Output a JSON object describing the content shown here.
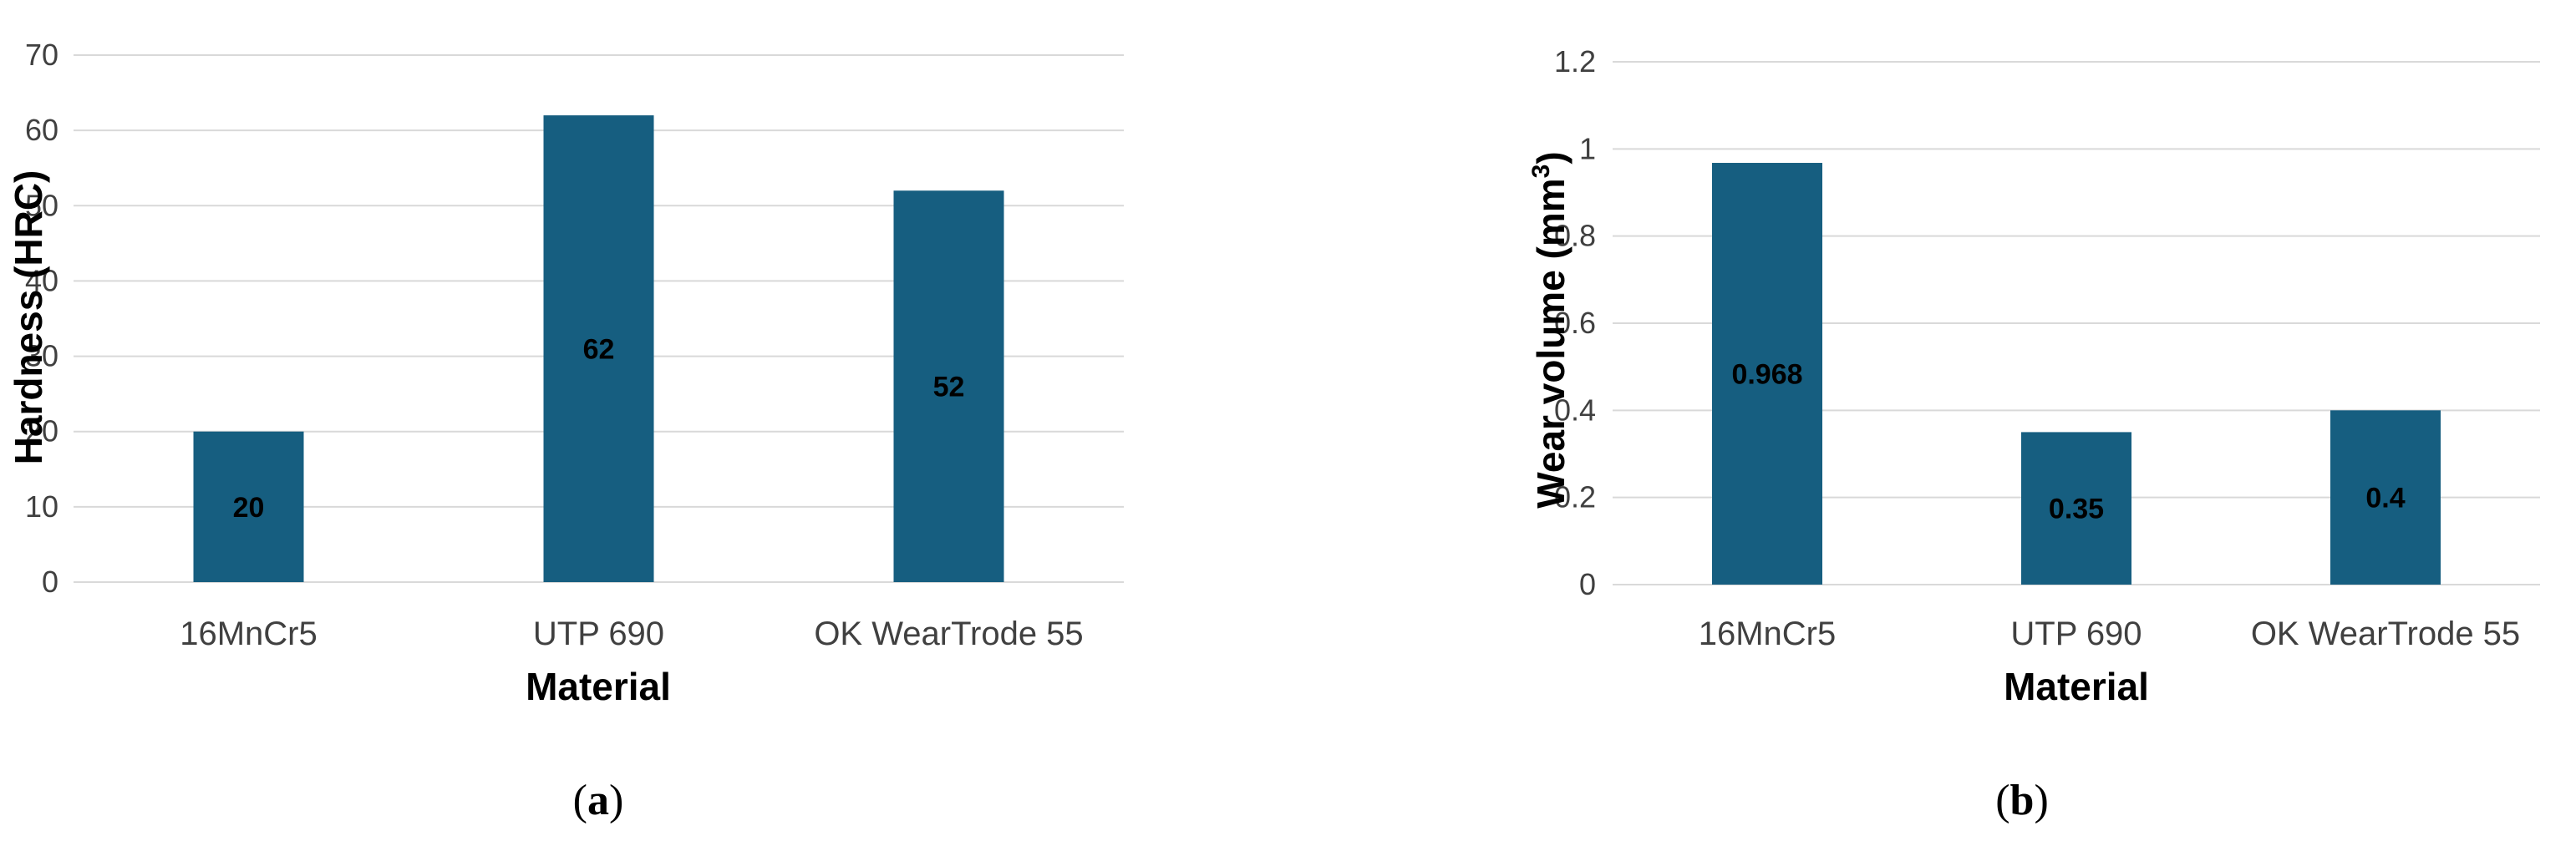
{
  "chart_data": [
    {
      "type": "bar",
      "panel_label": "a",
      "categories": [
        "16MnCr5",
        "UTP 690",
        "OK WearTrode 55"
      ],
      "values": [
        20,
        62,
        52
      ],
      "data_labels": [
        "20",
        "62",
        "52"
      ],
      "xlabel": "Material",
      "ylabel": "Hardness (HRC)",
      "ylim": [
        0,
        70
      ],
      "yticks": [
        0,
        10,
        20,
        30,
        40,
        50,
        60,
        70
      ],
      "ytick_labels": [
        "0",
        "10",
        "20",
        "30",
        "40",
        "50",
        "60",
        "70"
      ],
      "grid": true,
      "bar_color": "#165E80"
    },
    {
      "type": "bar",
      "panel_label": "b",
      "categories": [
        "16MnCr5",
        "UTP 690",
        "OK WearTrode 55"
      ],
      "values": [
        0.968,
        0.35,
        0.4
      ],
      "data_labels": [
        "0.968",
        "0.35",
        "0.4"
      ],
      "xlabel": "Material",
      "ylabel": "Wear volume (mm",
      "ylabel_superscript": "3",
      "ylabel_suffix": ")",
      "ylim": [
        0,
        1.2
      ],
      "yticks": [
        0,
        0.2,
        0.4,
        0.6,
        0.8,
        1.0,
        1.2
      ],
      "ytick_labels": [
        "0",
        "0.2",
        "0.4",
        "0.6",
        "0.8",
        "1",
        "1.2"
      ],
      "grid": true,
      "bar_color": "#165E80"
    }
  ]
}
